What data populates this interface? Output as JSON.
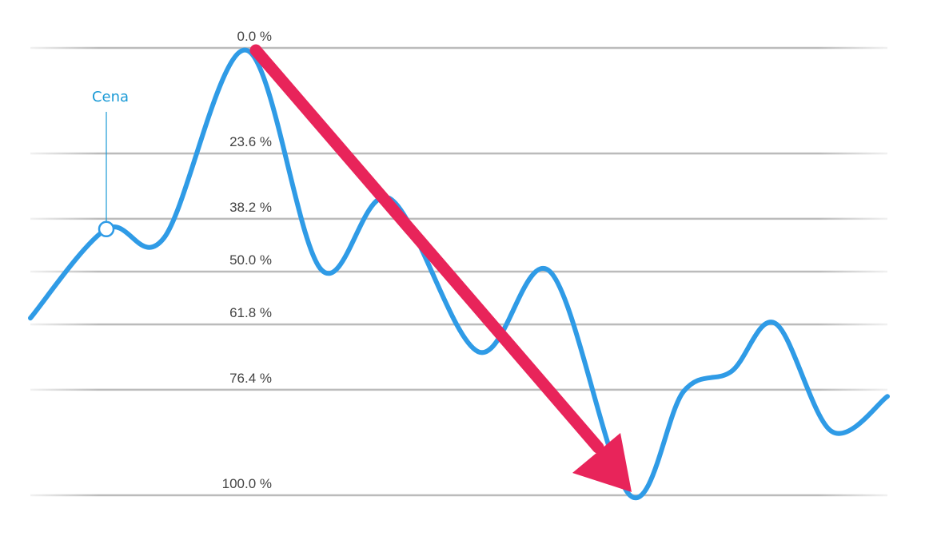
{
  "chart_data": {
    "type": "line",
    "x": [
      0,
      95,
      167,
      270,
      364,
      449,
      560,
      650,
      750,
      817,
      877,
      932,
      1002,
      1072
    ],
    "values": [
      60.4,
      40.5,
      42.5,
      0.5,
      49.6,
      33.6,
      67.9,
      50,
      100,
      76.8,
      72.3,
      61.6,
      85.7,
      77.9
    ],
    "color": "#2f9be6",
    "xlim": [
      0,
      1072
    ],
    "ylim": [
      100,
      0
    ],
    "yticks": [
      {
        "value": 0,
        "label": "0.0 %"
      },
      {
        "value": 23.6,
        "label": "23.6 %"
      },
      {
        "value": 38.2,
        "label": "38.2 %"
      },
      {
        "value": 50,
        "label": "50.0 %"
      },
      {
        "value": 61.8,
        "label": "61.8 %"
      },
      {
        "value": 76.4,
        "label": "76.4 %"
      },
      {
        "value": 100,
        "label": "100.0 %"
      }
    ],
    "grid": true,
    "annotation": "Cena"
  }
}
